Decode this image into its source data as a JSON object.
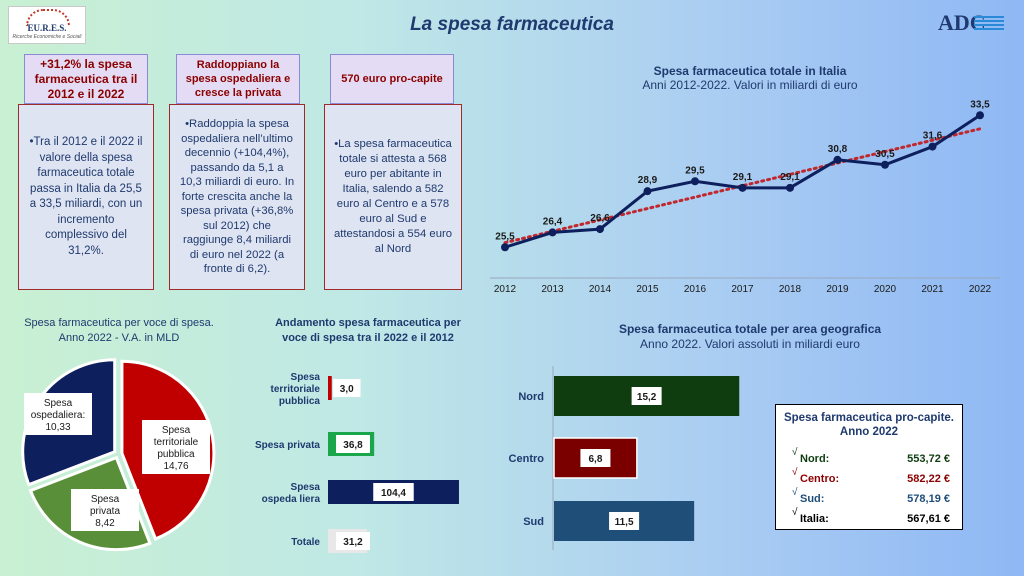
{
  "header": {
    "title": "La spesa farmaceutica",
    "logo_left": {
      "name": "EU.R.E.S.",
      "subtitle": "Ricerche Economiche e Sociali"
    },
    "logo_right": {
      "name": "ADC"
    }
  },
  "boxes": [
    {
      "head": "+31,2% la spesa farmaceutica tra il 2012 e il 2022",
      "body": "•Tra il 2012 e il 2022 il valore della spesa farmaceutica totale passa in Italia da 25,5 a 33,5 miliardi, con un incremento complessivo del 31,2%."
    },
    {
      "head": "Raddoppiano la spesa ospedaliera e cresce la privata",
      "body": "•Raddoppia la spesa ospedaliera nell’ultimo decennio (+104,4%), passando da 5,1 a 10,3 miliardi di euro. In forte crescita anche la spesa privata (+36,8% sul 2012) che raggiunge 8,4 miliardi di euro nel 2022 (a fronte di 6,2)."
    },
    {
      "head": "570 euro pro-capite",
      "body": "•La spesa farmaceutica totale si attesta a 568 euro per abitante in Italia, salendo a 582 euro al Centro e a 578 euro al Sud e attestandosi a 554 euro al Nord"
    }
  ],
  "colors": {
    "navy": "#0d1f5c",
    "red": "#c00000",
    "green": "#5a8f3a",
    "darkgreen": "#0f3d10",
    "darkred": "#7a0000",
    "steel": "#1f4e79",
    "trend": "#c0282e",
    "bar_green": "#1aa64a",
    "title": "#1f3a6e"
  },
  "chart_data": [
    {
      "type": "line",
      "title": "Spesa farmaceutica totale in Italia",
      "subtitle": "Anni 2012-2022. Valori in miliardi di euro",
      "x": [
        "2012",
        "2013",
        "2014",
        "2015",
        "2016",
        "2017",
        "2018",
        "2019",
        "2020",
        "2021",
        "2022"
      ],
      "values": [
        25.5,
        26.4,
        26.6,
        28.9,
        29.5,
        29.1,
        29.1,
        30.8,
        30.5,
        31.6,
        33.5
      ],
      "labels": [
        "25,5",
        "26,4",
        "26,6",
        "28,9",
        "29,5",
        "29,1",
        "29,1",
        "30,8",
        "30,5",
        "31,6",
        "33,5"
      ],
      "trendline": "linear",
      "ylim": [
        24,
        34
      ]
    },
    {
      "type": "pie",
      "title": "Spesa farmaceutica per voce di spesa. Anno 2022 - V.A. in MLD",
      "slices": [
        {
          "name": "Spesa territoriale pubblica",
          "value": 14.76,
          "label": "14,76"
        },
        {
          "name": "Spesa privata",
          "value": 8.42,
          "label": "8,42"
        },
        {
          "name": "Spesa ospedaliera:",
          "value": 10.33,
          "label": "10,33"
        }
      ]
    },
    {
      "type": "bar",
      "orientation": "horizontal",
      "title": "Andamento spesa farmaceutica per voce di spesa tra il 2022 e il 2012",
      "categories": [
        "Spesa territoriale pubblica",
        "Spesa privata",
        "Spesa ospeda liera",
        "Totale"
      ],
      "values": [
        3.0,
        36.8,
        104.4,
        31.2
      ],
      "labels": [
        "3,0",
        "36,8",
        "104,4",
        "31,2"
      ],
      "xlim": [
        0,
        110
      ]
    },
    {
      "type": "bar",
      "orientation": "horizontal",
      "title": "Spesa farmaceutica totale per area geografica",
      "subtitle": "Anno 2022. Valori assoluti in miliardi euro",
      "categories": [
        "Nord",
        "Centro",
        "Sud"
      ],
      "values": [
        15.2,
        6.8,
        11.5
      ],
      "labels": [
        "15,2",
        "6,8",
        "11,5"
      ],
      "xlim": [
        0,
        16
      ]
    }
  ],
  "procapite": {
    "title": "Spesa farmaceutica pro-capite. Anno 2022",
    "check": "√",
    "rows": [
      {
        "area": "Nord:",
        "value": "553,72 €",
        "color": "#0f3d10"
      },
      {
        "area": "Centro:",
        "value": "582,22 €",
        "color": "#8b0000"
      },
      {
        "area": "Sud:",
        "value": "578,19 €",
        "color": "#1f4e79"
      },
      {
        "area": "Italia:",
        "value": "567,61 €",
        "color": "#000000"
      }
    ]
  }
}
